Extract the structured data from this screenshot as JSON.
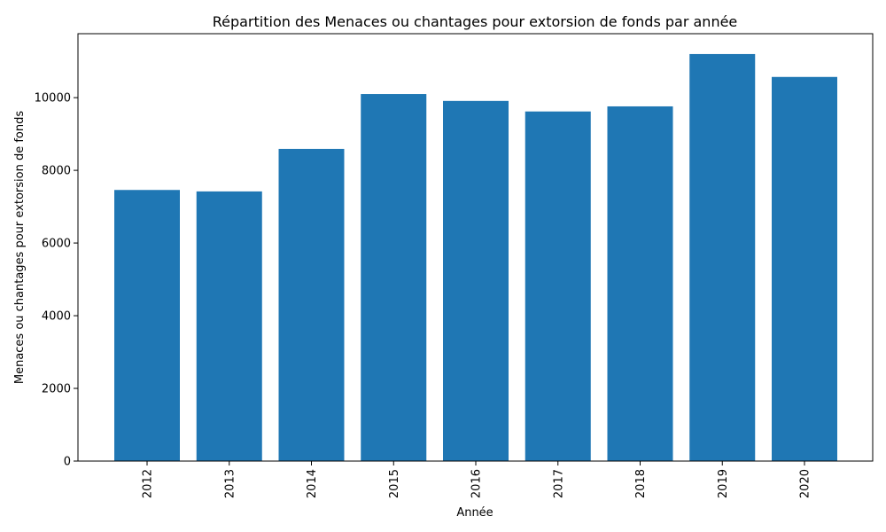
{
  "chart_data": {
    "type": "bar",
    "title": "Répartition des Menaces ou chantages pour extorsion de fonds par année",
    "xlabel": "Année",
    "ylabel": "Menaces ou chantages pour extorsion de fonds",
    "categories": [
      "2012",
      "2013",
      "2014",
      "2015",
      "2016",
      "2017",
      "2018",
      "2019",
      "2020"
    ],
    "values": [
      7460,
      7420,
      8590,
      10100,
      9910,
      9620,
      9760,
      11200,
      10570
    ],
    "ylim": [
      0,
      11760
    ],
    "yticks": [
      0,
      2000,
      4000,
      6000,
      8000,
      10000
    ],
    "bar_color": "#1f77b4",
    "grid": false,
    "legend": "none"
  }
}
